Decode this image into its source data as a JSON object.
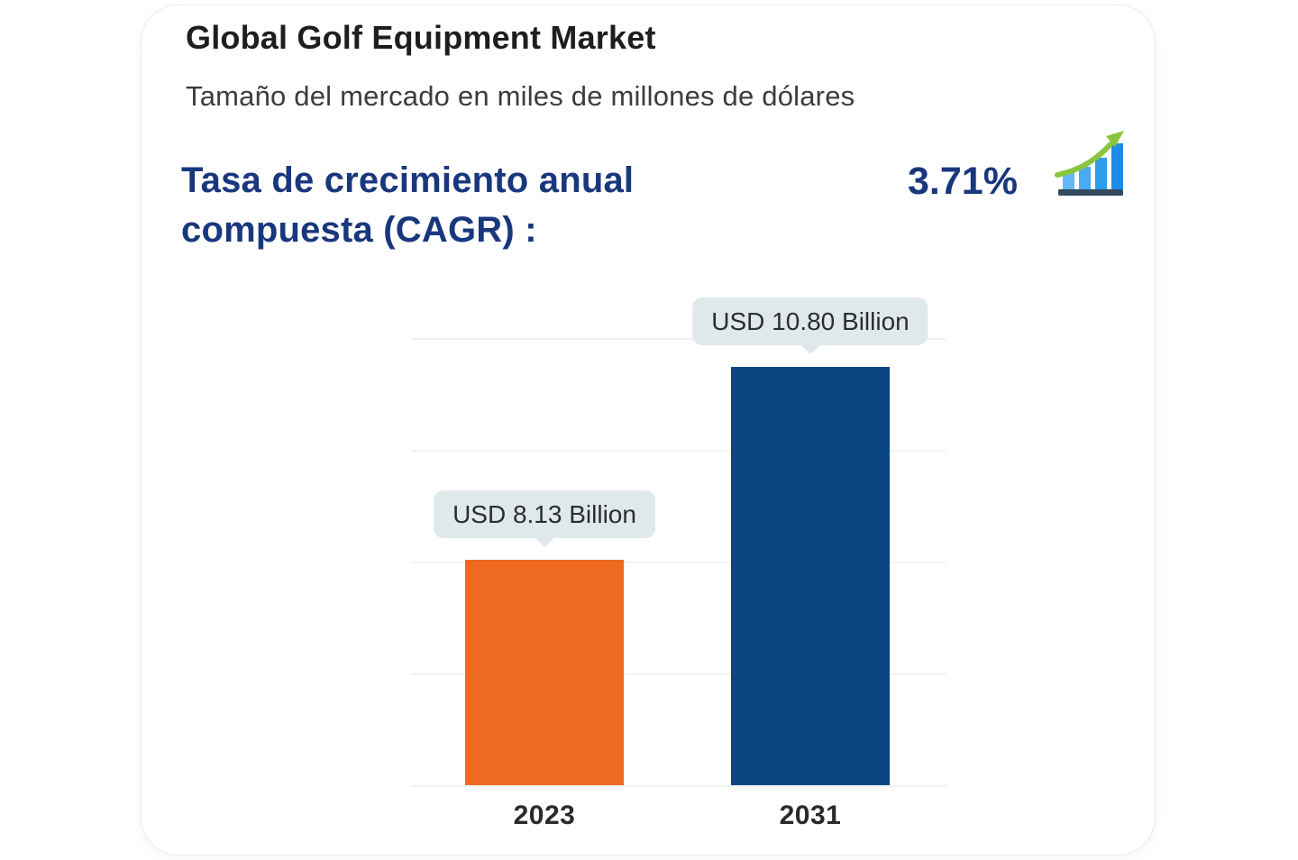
{
  "card": {
    "title": "Global Golf Equipment Market",
    "subtitle": "Tamaño del mercado en miles de millones de dólares",
    "cagr": {
      "label_line1": "Tasa de crecimiento anual",
      "label_line2": "compuesta (CAGR) :",
      "value": "3.71%"
    },
    "growth_icon": "growth-bar-chart-icon"
  },
  "chart_data": {
    "type": "bar",
    "title": "Global Golf Equipment Market",
    "subtitle": "Tamaño del mercado en miles de millones de dólares",
    "categories": [
      "2023",
      "2031"
    ],
    "values": [
      8.13,
      10.8
    ],
    "bar_labels": [
      "USD 8.13 Billion",
      "USD 10.80 Billion"
    ],
    "bar_colors": [
      "#ee6a21",
      "#0c4682"
    ],
    "cagr_percent": 3.71,
    "unit": "USD Billion",
    "xlabel": "",
    "ylabel": "",
    "ylim": [
      5,
      11.5
    ],
    "grid": true,
    "legend": false
  },
  "colors": {
    "heading_navy": "#19377d",
    "bar_2023": "#ee6a21",
    "bar_2031": "#0c4682",
    "tooltip_bg": "#dfe9ec",
    "gridline": "#eff3f4",
    "icon_green": "#8bc53f"
  }
}
